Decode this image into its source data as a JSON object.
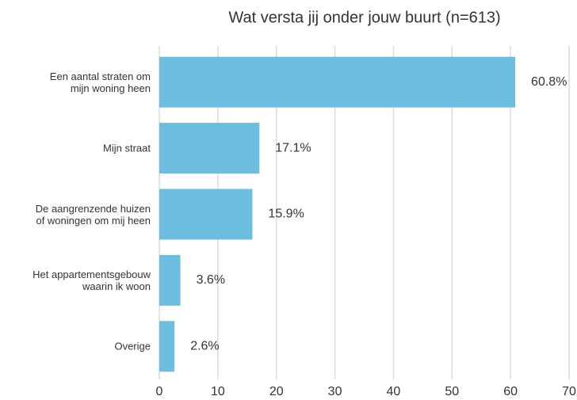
{
  "chart_data": {
    "type": "bar",
    "orientation": "horizontal",
    "title": "Wat versta jij onder jouw buurt (n=613)",
    "categories": [
      "Een aantal straten om\nmijn woning heen",
      "Mijn straat",
      "De aangrenzende huizen\nof woningen om mij heen",
      "Het appartementsgebouw\nwaarin ik woon",
      "Overige"
    ],
    "values": [
      60.8,
      17.1,
      15.9,
      3.6,
      2.6
    ],
    "value_labels": [
      "60.8%",
      "17.1%",
      "15.9%",
      "3.6%",
      "2.6%"
    ],
    "color": "#6dbde0",
    "xlim": [
      0,
      70
    ],
    "xticks": [
      0,
      10,
      20,
      30,
      40,
      50,
      60,
      70
    ],
    "grid": true
  }
}
